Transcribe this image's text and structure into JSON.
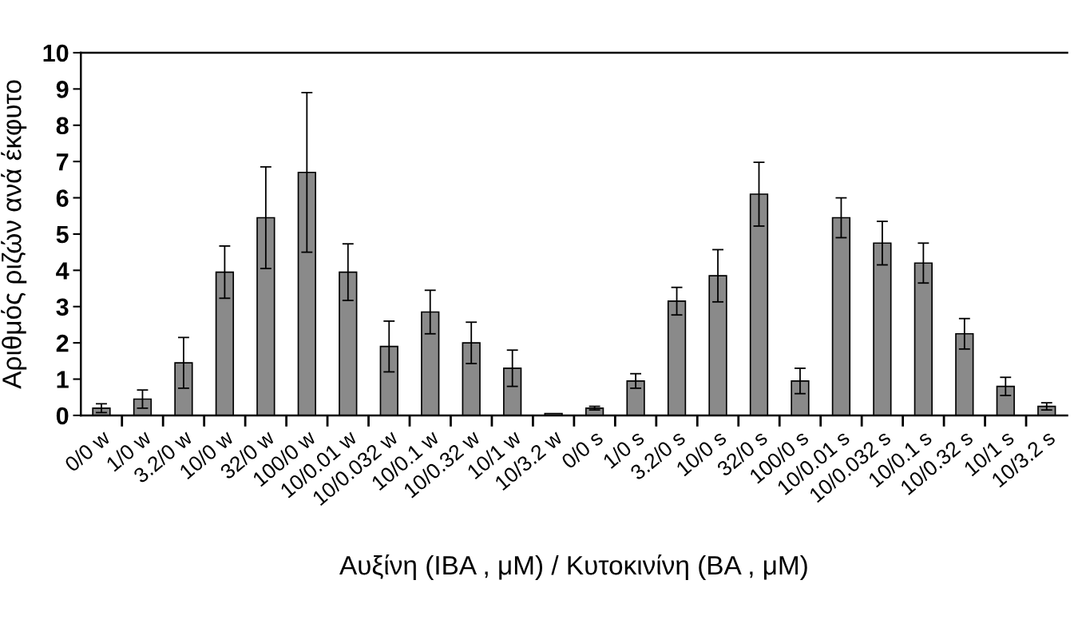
{
  "chart_data": {
    "type": "bar",
    "xlabel": "Αυξίνη (IBA , μM) / Κυτοκινίνη (BA , μM)",
    "ylabel": "Αριθμός ριζών ανά έκφυτο",
    "categories": [
      "0/0 w",
      "1/0 w",
      "3.2/0 w",
      "10/0 w",
      "32/0 w",
      "100/0 w",
      "10/0.01 w",
      "10/0.032 w",
      "10/0.1 w",
      "10/0.32 w",
      "10/1 w",
      "10/3.2 w",
      "0/0 s",
      "1/0 s",
      "3.2/0 s",
      "10/0 s",
      "32/0 s",
      "100/0 s",
      "10/0.01 s",
      "10/0.032 s",
      "10/0.1 s",
      "10/0.32 s",
      "10/1 s",
      "10/3.2 s"
    ],
    "values": [
      0.2,
      0.45,
      1.45,
      3.95,
      5.45,
      6.7,
      3.95,
      1.9,
      2.85,
      2.0,
      1.3,
      0.05,
      0.2,
      0.95,
      3.15,
      3.85,
      6.1,
      0.95,
      5.45,
      4.75,
      4.2,
      2.25,
      0.8,
      0.25
    ],
    "errors": [
      0.12,
      0.25,
      0.7,
      0.72,
      1.4,
      2.2,
      0.78,
      0.7,
      0.6,
      0.57,
      0.5,
      null,
      0.05,
      0.2,
      0.38,
      0.72,
      0.88,
      0.35,
      0.55,
      0.6,
      0.55,
      0.42,
      0.25,
      0.1
    ],
    "color": "#8a8a8a",
    "ylim": [
      0,
      10
    ],
    "yticks": [
      0,
      1,
      2,
      3,
      4,
      5,
      6,
      7,
      8,
      9,
      10
    ],
    "grid": false,
    "legend": false
  }
}
